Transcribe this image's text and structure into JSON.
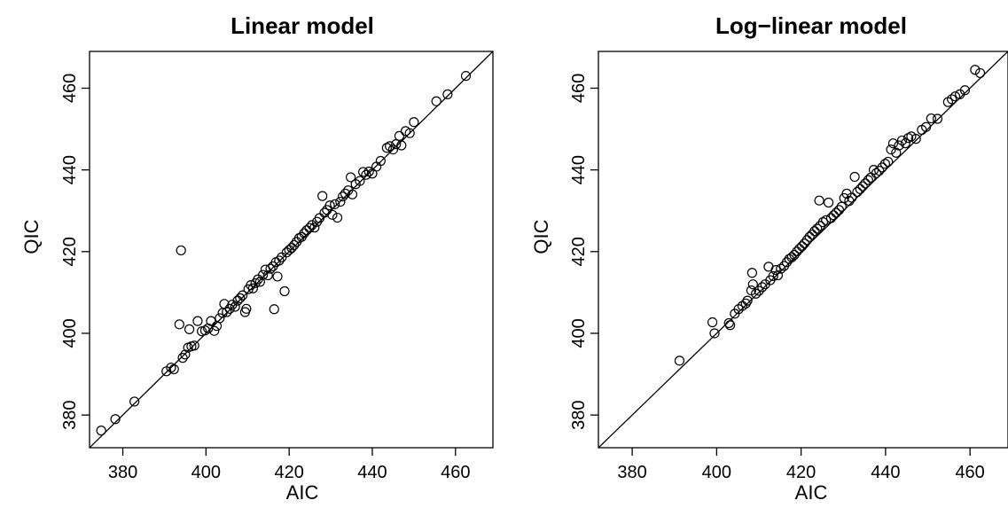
{
  "chart_data": [
    {
      "type": "scatter",
      "title": "Linear model",
      "xlabel": "AIC",
      "ylabel": "QIC",
      "xlim": [
        372,
        469
      ],
      "ylim": [
        372,
        469
      ],
      "xticks": [
        "380",
        "400",
        "420",
        "440",
        "460"
      ],
      "yticks": [
        "380",
        "400",
        "420",
        "440",
        "460"
      ],
      "reference_line": "y = x",
      "points": [
        [
          374.8,
          376.2
        ],
        [
          378.2,
          379.0
        ],
        [
          382.8,
          383.3
        ],
        [
          390.5,
          390.7
        ],
        [
          391.6,
          391.6
        ],
        [
          392.3,
          391.2
        ],
        [
          393.6,
          402.2
        ],
        [
          394.0,
          420.3
        ],
        [
          394.4,
          394.0
        ],
        [
          395.0,
          394.8
        ],
        [
          395.7,
          396.5
        ],
        [
          396.0,
          401.0
        ],
        [
          396.5,
          396.8
        ],
        [
          397.2,
          397.0
        ],
        [
          398.0,
          403.0
        ],
        [
          399.0,
          400.5
        ],
        [
          399.8,
          400.7
        ],
        [
          400.5,
          401.2
        ],
        [
          401.2,
          403.0
        ],
        [
          402.0,
          400.6
        ],
        [
          402.6,
          401.8
        ],
        [
          403.3,
          403.7
        ],
        [
          404.0,
          405.0
        ],
        [
          404.4,
          407.2
        ],
        [
          405.0,
          405.2
        ],
        [
          405.7,
          406.0
        ],
        [
          406.3,
          407.0
        ],
        [
          407.0,
          406.5
        ],
        [
          407.6,
          408.0
        ],
        [
          408.2,
          408.6
        ],
        [
          408.8,
          409.3
        ],
        [
          409.4,
          405.2
        ],
        [
          409.7,
          406.0
        ],
        [
          410.2,
          410.8
        ],
        [
          410.8,
          411.8
        ],
        [
          411.3,
          411.0
        ],
        [
          411.9,
          412.3
        ],
        [
          412.5,
          413.2
        ],
        [
          413.0,
          412.6
        ],
        [
          413.7,
          414.3
        ],
        [
          414.3,
          415.6
        ],
        [
          414.9,
          414.2
        ],
        [
          415.5,
          415.8
        ],
        [
          416.1,
          416.4
        ],
        [
          416.4,
          405.9
        ],
        [
          416.8,
          417.4
        ],
        [
          417.2,
          413.9
        ],
        [
          417.6,
          417.8
        ],
        [
          418.2,
          418.6
        ],
        [
          418.9,
          410.3
        ],
        [
          419.4,
          419.8
        ],
        [
          420.0,
          420.4
        ],
        [
          420.6,
          420.9
        ],
        [
          421.2,
          421.6
        ],
        [
          421.8,
          422.4
        ],
        [
          422.4,
          423.3
        ],
        [
          423.0,
          423.6
        ],
        [
          423.6,
          424.5
        ],
        [
          424.2,
          425.2
        ],
        [
          424.9,
          425.8
        ],
        [
          425.5,
          426.5
        ],
        [
          426.1,
          425.9
        ],
        [
          426.7,
          427.3
        ],
        [
          427.3,
          428.2
        ],
        [
          428.0,
          433.6
        ],
        [
          428.5,
          429.5
        ],
        [
          429.1,
          430.2
        ],
        [
          429.8,
          431.3
        ],
        [
          430.4,
          429.0
        ],
        [
          431.0,
          431.6
        ],
        [
          431.6,
          428.3
        ],
        [
          432.3,
          432.2
        ],
        [
          432.9,
          433.5
        ],
        [
          433.5,
          434.2
        ],
        [
          434.2,
          435.0
        ],
        [
          434.8,
          438.2
        ],
        [
          435.2,
          434.0
        ],
        [
          436.0,
          436.5
        ],
        [
          437.0,
          437.3
        ],
        [
          437.8,
          439.5
        ],
        [
          438.5,
          438.8
        ],
        [
          439.2,
          439.6
        ],
        [
          440.0,
          439.1
        ],
        [
          441.0,
          440.8
        ],
        [
          442.0,
          442.2
        ],
        [
          443.5,
          445.4
        ],
        [
          444.2,
          445.8
        ],
        [
          445.0,
          445.0
        ],
        [
          445.7,
          446.3
        ],
        [
          446.5,
          448.3
        ],
        [
          447.0,
          446.0
        ],
        [
          448.0,
          449.5
        ],
        [
          449.0,
          449.0
        ],
        [
          450.0,
          451.7
        ],
        [
          455.4,
          456.8
        ],
        [
          458.1,
          458.5
        ],
        [
          462.5,
          463.0
        ]
      ]
    },
    {
      "type": "scatter",
      "title": "Log−linear model",
      "xlabel": "AIC",
      "ylabel": "QIC",
      "xlim": [
        372,
        469
      ],
      "ylim": [
        372,
        469
      ],
      "xticks": [
        "380",
        "400",
        "420",
        "440",
        "460"
      ],
      "yticks": [
        "380",
        "400",
        "420",
        "440",
        "460"
      ],
      "reference_line": "y = x",
      "points": [
        [
          391.2,
          393.3
        ],
        [
          399.0,
          402.7
        ],
        [
          399.5,
          400.0
        ],
        [
          402.9,
          402.5
        ],
        [
          403.2,
          402.0
        ],
        [
          404.3,
          404.8
        ],
        [
          405.2,
          405.9
        ],
        [
          406.1,
          406.7
        ],
        [
          406.9,
          407.3
        ],
        [
          407.3,
          408.0
        ],
        [
          408.2,
          410.5
        ],
        [
          408.4,
          414.8
        ],
        [
          408.6,
          412.0
        ],
        [
          409.3,
          409.7
        ],
        [
          410.0,
          410.4
        ],
        [
          410.8,
          411.3
        ],
        [
          411.5,
          412.0
        ],
        [
          412.3,
          416.3
        ],
        [
          412.7,
          413.0
        ],
        [
          413.4,
          414.0
        ],
        [
          414.0,
          415.5
        ],
        [
          414.5,
          414.2
        ],
        [
          415.2,
          415.8
        ],
        [
          416.0,
          416.5
        ],
        [
          416.6,
          417.4
        ],
        [
          417.2,
          418.2
        ],
        [
          417.8,
          418.6
        ],
        [
          418.4,
          419.2
        ],
        [
          419.0,
          420.0
        ],
        [
          419.6,
          420.7
        ],
        [
          420.2,
          421.3
        ],
        [
          420.8,
          422.0
        ],
        [
          421.4,
          422.8
        ],
        [
          422.0,
          423.6
        ],
        [
          422.6,
          424.2
        ],
        [
          423.2,
          425.0
        ],
        [
          423.8,
          425.6
        ],
        [
          424.3,
          432.5
        ],
        [
          424.5,
          426.3
        ],
        [
          425.2,
          427.2
        ],
        [
          425.9,
          427.7
        ],
        [
          426.5,
          432.0
        ],
        [
          427.1,
          428.2
        ],
        [
          427.7,
          428.9
        ],
        [
          428.3,
          429.5
        ],
        [
          429.0,
          430.2
        ],
        [
          429.6,
          431.0
        ],
        [
          430.2,
          433.1
        ],
        [
          430.8,
          434.2
        ],
        [
          431.4,
          432.4
        ],
        [
          432.0,
          433.2
        ],
        [
          432.7,
          438.3
        ],
        [
          433.3,
          434.6
        ],
        [
          434.0,
          435.3
        ],
        [
          434.6,
          436.0
        ],
        [
          435.2,
          436.7
        ],
        [
          435.9,
          437.5
        ],
        [
          436.5,
          438.1
        ],
        [
          437.2,
          440.0
        ],
        [
          437.8,
          439.2
        ],
        [
          438.5,
          439.8
        ],
        [
          439.2,
          440.6
        ],
        [
          439.9,
          441.5
        ],
        [
          440.6,
          442.0
        ],
        [
          441.3,
          445.0
        ],
        [
          441.8,
          446.5
        ],
        [
          442.5,
          444.2
        ],
        [
          443.2,
          446.0
        ],
        [
          443.9,
          447.2
        ],
        [
          444.7,
          446.5
        ],
        [
          445.4,
          447.8
        ],
        [
          446.1,
          448.2
        ],
        [
          447.2,
          447.6
        ],
        [
          448.6,
          449.8
        ],
        [
          449.6,
          450.5
        ],
        [
          450.8,
          452.6
        ],
        [
          452.3,
          452.5
        ],
        [
          454.8,
          456.6
        ],
        [
          455.7,
          457.3
        ],
        [
          456.5,
          458.0
        ],
        [
          457.6,
          458.5
        ],
        [
          458.8,
          459.5
        ],
        [
          461.2,
          464.5
        ],
        [
          462.4,
          463.7
        ]
      ]
    }
  ]
}
